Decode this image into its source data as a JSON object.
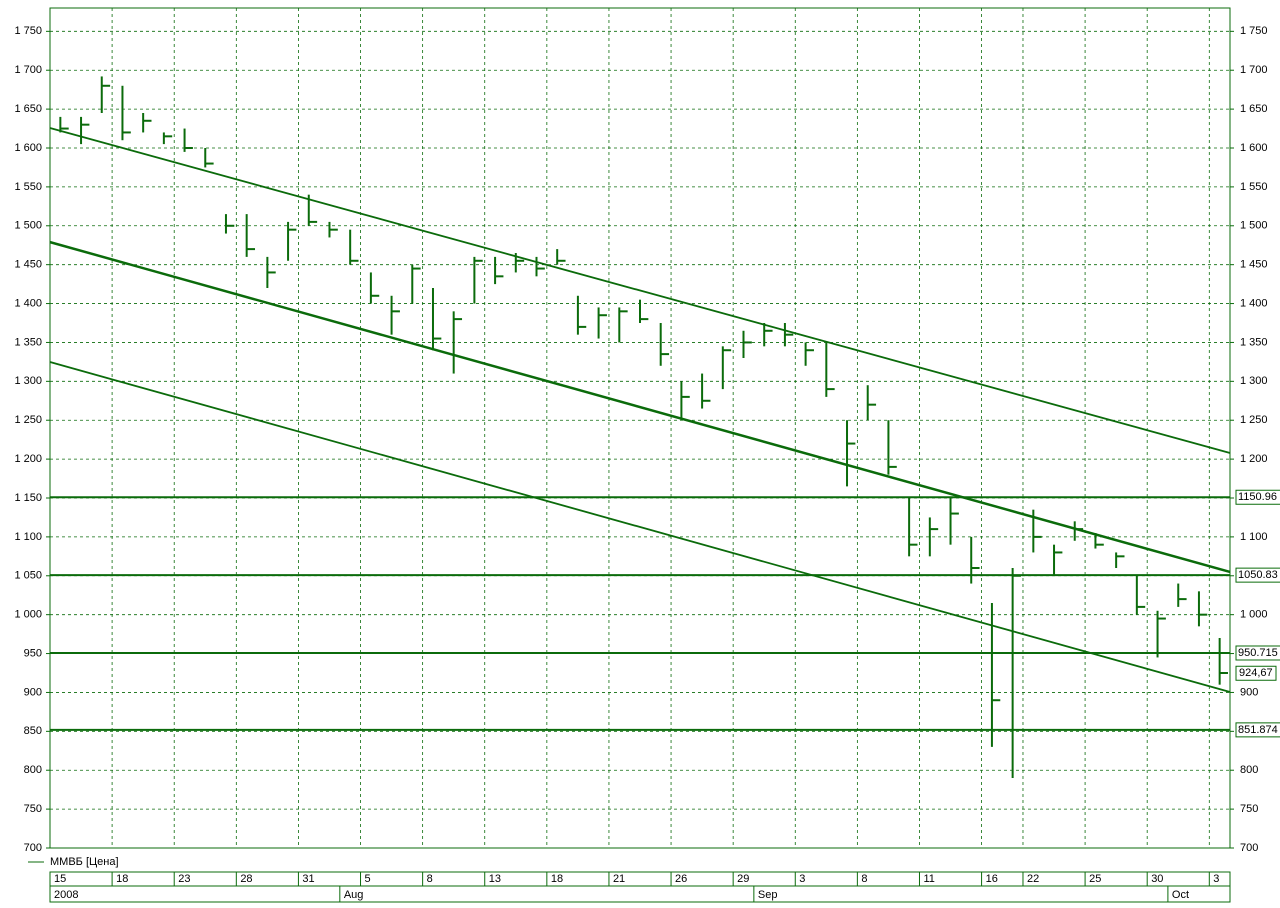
{
  "chart_data": {
    "type": "ohlc",
    "legend": "ММВБ [Цена]",
    "color": "#0b6b0b",
    "grid": true,
    "ylim": [
      700,
      1780
    ],
    "yticks": [
      700,
      750,
      800,
      850,
      900,
      950,
      {
        "value": 1000,
        "label": "1 000"
      },
      {
        "value": 1050,
        "label": "1 050"
      },
      {
        "value": 1100,
        "label": "1 100"
      },
      {
        "value": 1150,
        "label": "1 150"
      },
      {
        "value": 1200,
        "label": "1 200"
      },
      {
        "value": 1250,
        "label": "1 250"
      },
      {
        "value": 1300,
        "label": "1 300"
      },
      {
        "value": 1350,
        "label": "1 350"
      },
      {
        "value": 1400,
        "label": "1 400"
      },
      {
        "value": 1450,
        "label": "1 450"
      },
      {
        "value": 1500,
        "label": "1 500"
      },
      {
        "value": 1550,
        "label": "1 550"
      },
      {
        "value": 1600,
        "label": "1 600"
      },
      {
        "value": 1650,
        "label": "1 650"
      },
      {
        "value": 1700,
        "label": "1 700"
      },
      {
        "value": 1750,
        "label": "1 750"
      }
    ],
    "categories": [
      "15",
      null,
      null,
      "18",
      null,
      null,
      "23",
      null,
      null,
      "28",
      null,
      null,
      "31",
      null,
      null,
      "5",
      null,
      null,
      "8",
      null,
      null,
      "13",
      null,
      null,
      "18",
      null,
      null,
      "21",
      null,
      null,
      "26",
      null,
      null,
      "29",
      null,
      null,
      "3",
      null,
      null,
      "8",
      null,
      null,
      "11",
      null,
      null,
      "16",
      null,
      "22",
      null,
      null,
      "25",
      null,
      null,
      "30",
      null,
      null,
      "3"
    ],
    "periods": [
      "2008",
      null,
      null,
      null,
      null,
      null,
      null,
      null,
      null,
      null,
      null,
      null,
      null,
      null,
      "Aug",
      null,
      null,
      null,
      null,
      null,
      null,
      null,
      null,
      null,
      null,
      null,
      null,
      null,
      null,
      null,
      null,
      null,
      null,
      null,
      "Sep",
      null,
      null,
      null,
      null,
      null,
      null,
      null,
      null,
      null,
      null,
      null,
      null,
      null,
      null,
      null,
      null,
      null,
      null,
      null,
      "Oct",
      null,
      null
    ],
    "high": [
      1640,
      1640,
      1692,
      1680,
      1645,
      1620,
      1625,
      1600,
      1515,
      1515,
      1460,
      1505,
      1540,
      1505,
      1495,
      1440,
      1410,
      1450,
      1420,
      1390,
      1460,
      1460,
      1465,
      1460,
      1470,
      1410,
      1395,
      1395,
      1405,
      1375,
      1300,
      1310,
      1345,
      1365,
      1375,
      1375,
      1350,
      1350,
      1250,
      1295,
      1250,
      1150,
      1125,
      1150,
      1100,
      1015,
      1060,
      1135,
      1090,
      1120,
      1105,
      1080,
      1050,
      1005,
      1040,
      1030,
      970
    ],
    "low": [
      1620,
      1605,
      1645,
      1610,
      1620,
      1605,
      1595,
      1575,
      1490,
      1460,
      1420,
      1455,
      1500,
      1485,
      1450,
      1400,
      1360,
      1400,
      1340,
      1310,
      1400,
      1425,
      1440,
      1435,
      1450,
      1360,
      1355,
      1350,
      1375,
      1320,
      1250,
      1265,
      1290,
      1330,
      1345,
      1345,
      1320,
      1280,
      1165,
      1250,
      1180,
      1075,
      1075,
      1090,
      1040,
      830,
      790,
      1080,
      1050,
      1095,
      1085,
      1060,
      1000,
      945,
      1010,
      985,
      910
    ],
    "close": [
      1625,
      1630,
      1680,
      1620,
      1635,
      1615,
      1600,
      1580,
      1500,
      1470,
      1440,
      1495,
      1505,
      1495,
      1455,
      1410,
      1390,
      1445,
      1355,
      1380,
      1455,
      1435,
      1455,
      1445,
      1455,
      1370,
      1385,
      1390,
      1380,
      1335,
      1280,
      1275,
      1340,
      1350,
      1365,
      1360,
      1340,
      1290,
      1220,
      1270,
      1190,
      1090,
      1110,
      1130,
      1060,
      890,
      1050,
      1100,
      1080,
      1110,
      1090,
      1075,
      1010,
      995,
      1020,
      1000,
      925
    ],
    "levels": [
      {
        "value": 1150.96,
        "label": "1150.96"
      },
      {
        "value": 1050.83,
        "label": "1050.83"
      },
      {
        "value": 950.715,
        "label": "950.715"
      },
      {
        "value": 851.874,
        "label": "851.874"
      }
    ],
    "last_price": {
      "value": 924.67,
      "label": "924,67"
    },
    "trend_lines": [
      {
        "start": 1625.7,
        "end": 1207.9
      },
      {
        "start": 1479,
        "end": 1054.9
      },
      {
        "start": 1324.8,
        "end": 900.6
      }
    ]
  }
}
